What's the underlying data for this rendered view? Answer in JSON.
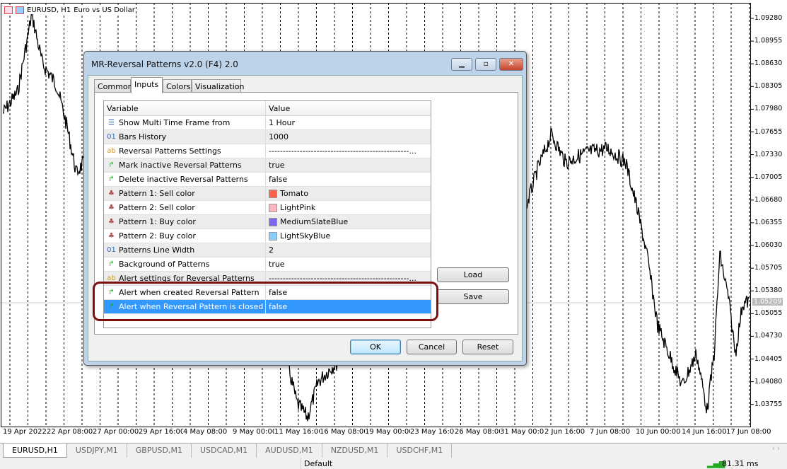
{
  "chart": {
    "symbol": "EURUSD, H1",
    "description": "Euro vs US Dollar",
    "bid_label": "1.05209",
    "price_labels": [
      "1.09280",
      "1.08955",
      "1.08630",
      "1.08305",
      "1.07980",
      "1.07655",
      "1.07330",
      "1.07005",
      "1.06680",
      "1.06355",
      "1.06030",
      "1.05705",
      "1.05380",
      "1.05055",
      "1.04730",
      "1.04405",
      "1.04080",
      "1.03755"
    ],
    "time_labels": [
      "19 Apr 2022",
      "22 Apr 08:00",
      "27 Apr 00:00",
      "29 Apr 16:00",
      "4 May 08:00",
      "9 May 00:00",
      "11 May 16:00",
      "16 May 08:00",
      "19 May 00:00",
      "23 May 16:00",
      "26 May 08:00",
      "31 May 00:00",
      "2 Jun 16:00",
      "7 Jun 08:00",
      "10 Jun 00:00",
      "14 Jun 16:00",
      "17 Jun 08:00"
    ]
  },
  "dialog": {
    "title": "MR-Reversal Patterns v2.0 (F4) 2.0",
    "tabs": [
      "Common",
      "Inputs",
      "Colors",
      "Visualization"
    ],
    "active_tab": "Inputs",
    "columns": {
      "variable": "Variable",
      "value": "Value"
    },
    "rows": [
      {
        "icon": "enum",
        "variable": "Show Multi Time Frame from",
        "value": "1 Hour"
      },
      {
        "icon": "int",
        "variable": "Bars History",
        "value": "1000"
      },
      {
        "icon": "string",
        "variable": "Reversal Patterns Settings",
        "value": "--------------------------------------------------..."
      },
      {
        "icon": "bool",
        "variable": "Mark inactive Reversal Patterns",
        "value": "true"
      },
      {
        "icon": "bool",
        "variable": "Delete inactive Reversal Patterns",
        "value": "false"
      },
      {
        "icon": "color",
        "variable": "Pattern 1: Sell color",
        "value": "Tomato",
        "swatch": "#ff6347"
      },
      {
        "icon": "color",
        "variable": "Pattern 2: Sell color",
        "value": "LightPink",
        "swatch": "#ffb6c1"
      },
      {
        "icon": "color",
        "variable": "Pattern 1: Buy color",
        "value": "MediumSlateBlue",
        "swatch": "#7b68ee"
      },
      {
        "icon": "color",
        "variable": "Pattern 2: Buy color",
        "value": "LightSkyBlue",
        "swatch": "#87cefa"
      },
      {
        "icon": "int",
        "variable": "Patterns Line Width",
        "value": "2"
      },
      {
        "icon": "bool",
        "variable": "Background of Patterns",
        "value": "true"
      },
      {
        "icon": "string",
        "variable": "Alert settings for Reversal Patterns",
        "value": "--------------------------------------------------..."
      },
      {
        "icon": "bool",
        "variable": "Alert when created Reversal Pattern",
        "value": "false"
      },
      {
        "icon": "bool",
        "variable": "Alert when Reversal Pattern is closed",
        "value": "false",
        "selected": true
      }
    ],
    "buttons": {
      "load": "Load",
      "save": "Save",
      "ok": "OK",
      "cancel": "Cancel",
      "reset": "Reset"
    }
  },
  "symbol_tabs": [
    "EURUSD,H1",
    "USDJPY,M1",
    "GBPUSD,M1",
    "USDCAD,M1",
    "AUDUSD,M1",
    "NZDUSD,M1",
    "USDCHF,M1"
  ],
  "status": {
    "profile": "Default",
    "ping": "81.31 ms"
  },
  "colors": {
    "selection": "#3399ff",
    "highlight": "#7b1010"
  }
}
